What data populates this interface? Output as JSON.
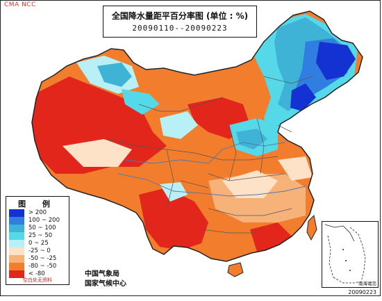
{
  "header_tag": "CMA NCC",
  "title": "全国降水量距平百分率图 (单位 : %)",
  "period": "20090110--20090223",
  "legend": {
    "title": "图 例",
    "items": [
      {
        "label": "> 200",
        "color": "#1432d2"
      },
      {
        "label": "100 ~ 200",
        "color": "#2f7ee0"
      },
      {
        "label": "50 ~ 100",
        "color": "#3fb3d6"
      },
      {
        "label": "25 ~ 50",
        "color": "#55d8e8"
      },
      {
        "label": "0 ~ 25",
        "color": "#b8f0f5"
      },
      {
        "label": "-25 ~ 0",
        "color": "#fde2c8"
      },
      {
        "label": "-50 ~ -25",
        "color": "#f7b27a"
      },
      {
        "label": "-80 ~ -50",
        "color": "#f27d2c"
      },
      {
        "label": "< -80",
        "color": "#e3261b"
      }
    ],
    "note": "空白处无资料"
  },
  "credits": {
    "line1": "中国气象局",
    "line2": "国家气候中心"
  },
  "inset_label": "南海诸岛",
  "date_code": "20090223",
  "colors": {
    "border": "#444444",
    "river": "#5577aa"
  }
}
